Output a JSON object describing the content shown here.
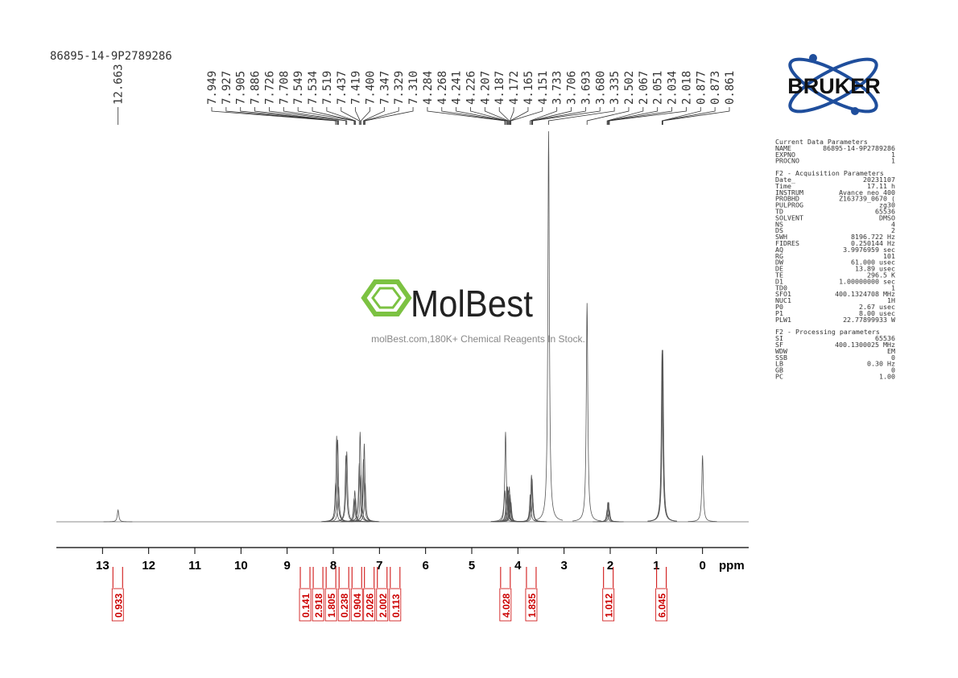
{
  "header": {
    "sample": "86895-14-9P2789286"
  },
  "logo": {
    "text": "BRUKER"
  },
  "watermark": {
    "name": "MolBest",
    "tagline": "molBest.com,180K+ Chemical Reagents In Stock."
  },
  "chart_data": {
    "type": "nmr",
    "x_label": "ppm",
    "xlim": [
      14,
      -1
    ],
    "xticks": [
      13,
      12,
      11,
      10,
      9,
      8,
      7,
      6,
      5,
      4,
      3,
      2,
      1,
      0
    ],
    "peaks": [
      {
        "ppm": 12.663,
        "height": 3
      },
      {
        "ppm": 7.949,
        "height": 10
      },
      {
        "ppm": 7.927,
        "height": 22
      },
      {
        "ppm": 7.905,
        "height": 21
      },
      {
        "ppm": 7.886,
        "height": 9
      },
      {
        "ppm": 7.726,
        "height": 17
      },
      {
        "ppm": 7.708,
        "height": 18
      },
      {
        "ppm": 7.549,
        "height": 6
      },
      {
        "ppm": 7.534,
        "height": 8
      },
      {
        "ppm": 7.519,
        "height": 6
      },
      {
        "ppm": 7.437,
        "height": 15
      },
      {
        "ppm": 7.419,
        "height": 23
      },
      {
        "ppm": {
          "value": 7.4,
          "label": "7.400"
        },
        "height": 12
      },
      {
        "ppm": 7.347,
        "height": 16
      },
      {
        "ppm": 7.329,
        "height": 20
      },
      {
        "ppm": {
          "value": 7.31,
          "label": "7.310"
        },
        "height": 10
      },
      {
        "ppm": 4.284,
        "height": 8
      },
      {
        "ppm": 4.268,
        "height": 23
      },
      {
        "ppm": 4.241,
        "height": 9
      },
      {
        "ppm": 4.226,
        "height": 9
      },
      {
        "ppm": 4.207,
        "height": 8
      },
      {
        "ppm": 4.187,
        "height": 9
      },
      {
        "ppm": 4.172,
        "height": 7
      },
      {
        "ppm": 4.165,
        "height": 6
      },
      {
        "ppm": 4.151,
        "height": 5
      },
      {
        "ppm": 3.733,
        "height": 7
      },
      {
        "ppm": 3.706,
        "height": 12
      },
      {
        "ppm": 3.693,
        "height": 11
      },
      {
        "ppm": {
          "value": 3.68,
          "label": "3.680"
        },
        "height": 6
      },
      {
        "ppm": 3.335,
        "height": 100
      },
      {
        "ppm": 2.502,
        "height": 56
      },
      {
        "ppm": 2.067,
        "height": 3
      },
      {
        "ppm": 2.051,
        "height": 5
      },
      {
        "ppm": 2.034,
        "height": 5
      },
      {
        "ppm": 2.018,
        "height": 3
      },
      {
        "ppm": 0.877,
        "height": 44
      },
      {
        "ppm": 0.873,
        "height": 43
      },
      {
        "ppm": 0.861,
        "height": 44
      }
    ],
    "reference_peak": {
      "ppm": 0,
      "height": 17
    },
    "integrals": [
      {
        "value": 0.933,
        "ppm": 12.67
      },
      {
        "value": 0.141,
        "ppm": 8.61
      },
      {
        "value": 2.918,
        "ppm": 8.33
      },
      {
        "value": 1.805,
        "ppm": 8.05
      },
      {
        "value": 0.238,
        "ppm": 7.77
      },
      {
        "value": 0.904,
        "ppm": 7.49
      },
      {
        "value": 2.026,
        "ppm": 7.22
      },
      {
        "value": 2.002,
        "ppm": 6.94
      },
      {
        "value": 0.113,
        "ppm": 6.66
      },
      {
        "value": 4.028,
        "ppm": 4.27
      },
      {
        "value": 1.835,
        "ppm": 3.71
      },
      {
        "value": 1.012,
        "ppm": 2.04
      },
      {
        "value": 6.045,
        "ppm": 0.89
      }
    ]
  },
  "parameters": [
    {
      "title": "Current Data Parameters",
      "rows": [
        [
          "NAME",
          "86895-14-9P2789286"
        ],
        [
          "EXPNO",
          "1"
        ],
        [
          "PROCNO",
          "1"
        ]
      ]
    },
    {
      "title": "F2 - Acquisition Parameters",
      "rows": [
        [
          "Date_",
          "20231107"
        ],
        [
          "Time",
          "17.11 h"
        ],
        [
          "INSTRUM",
          "Avance neo 400"
        ],
        [
          "PROBHD",
          "Z163739_0670 ("
        ],
        [
          "PULPROG",
          "zg30"
        ],
        [
          "TD",
          "65536"
        ],
        [
          "SOLVENT",
          "DMSO"
        ],
        [
          "NS",
          "4"
        ],
        [
          "DS",
          "2"
        ],
        [
          "SWH",
          "8196.722 Hz"
        ],
        [
          "FIDRES",
          "0.250144 Hz"
        ],
        [
          "AQ",
          "3.9976959 sec"
        ],
        [
          "RG",
          "101"
        ],
        [
          "DW",
          "61.000 usec"
        ],
        [
          "DE",
          "13.89 usec"
        ],
        [
          "TE",
          "296.5 K"
        ],
        [
          "D1",
          "1.00000000 sec"
        ],
        [
          "TD0",
          "1"
        ],
        [
          "SFO1",
          "400.1324708 MHz"
        ],
        [
          "NUC1",
          "1H"
        ],
        [
          "P0",
          "2.67 usec"
        ],
        [
          "P1",
          "8.00 usec"
        ],
        [
          "PLW1",
          "22.77899933 W"
        ]
      ]
    },
    {
      "title": "F2 - Processing parameters",
      "rows": [
        [
          "SI",
          "65536"
        ],
        [
          "SF",
          "400.1300025 MHz"
        ],
        [
          "WDW",
          "EM"
        ],
        [
          "SSB",
          "0"
        ],
        [
          "LB",
          "0.30 Hz"
        ],
        [
          "GB",
          "0"
        ],
        [
          "PC",
          "1.00"
        ]
      ]
    }
  ]
}
